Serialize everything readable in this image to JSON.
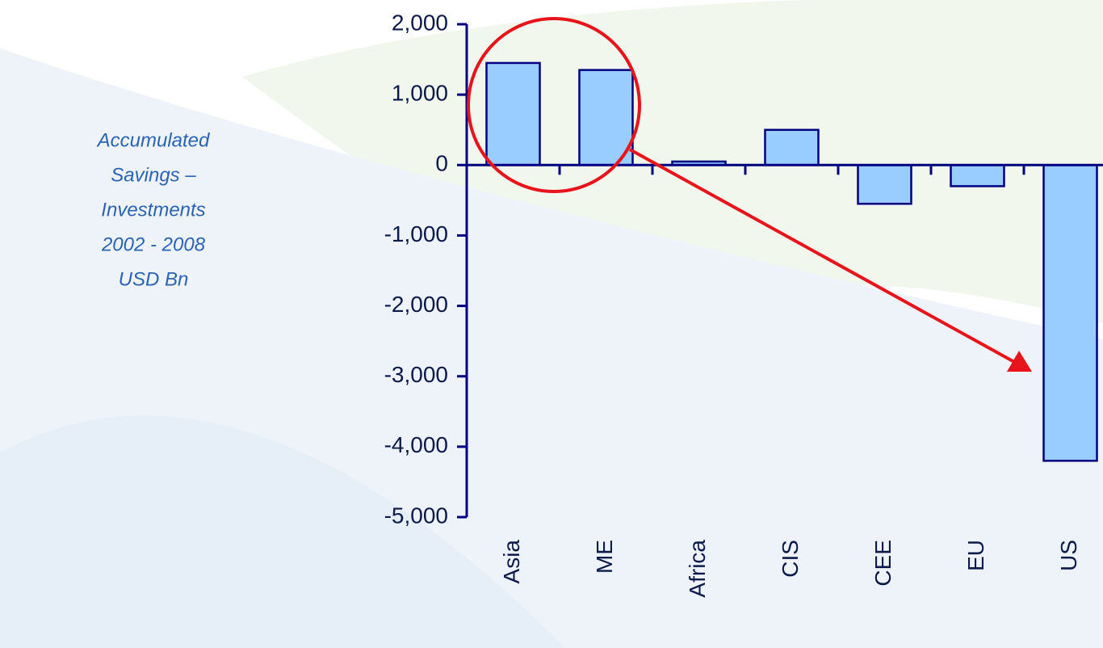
{
  "chart_data": {
    "type": "bar",
    "annotation": [
      "Accumulated",
      "Savings –",
      "Investments",
      "2002 - 2008",
      "USD Bn"
    ],
    "categories": [
      "Asia",
      "ME",
      "Africa",
      "CIS",
      "CEE",
      "EU",
      "US"
    ],
    "values": [
      1450,
      1350,
      50,
      500,
      -550,
      -300,
      -4200
    ],
    "color": "#99ccff",
    "edge_color": "#000080",
    "ylim": [
      -5000,
      2000
    ],
    "yticks": [
      {
        "value": -5000,
        "label": "-5,000"
      },
      {
        "value": -4000,
        "label": "-4,000"
      },
      {
        "value": -3000,
        "label": "-3,000"
      },
      {
        "value": -2000,
        "label": "-2,000"
      },
      {
        "value": -1000,
        "label": "-1,000"
      },
      0,
      {
        "value": 1000,
        "label": "1,000"
      },
      {
        "value": 2000,
        "label": "2,000"
      }
    ],
    "grid": false
  }
}
